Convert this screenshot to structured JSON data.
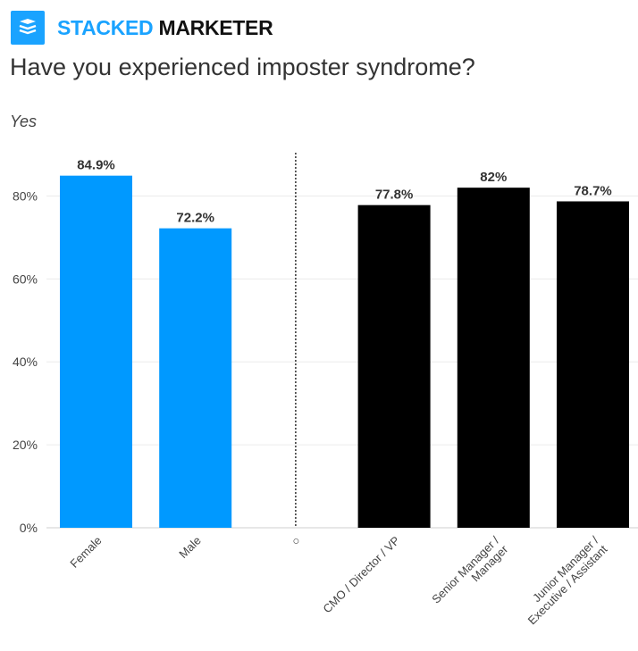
{
  "brand": {
    "name_first": "STACKED",
    "name_second": "MARKETER",
    "logo_icon": "stacked-layers-icon",
    "accent_color": "#1aa3ff"
  },
  "chart_data": {
    "type": "bar",
    "title": "Have you experienced imposter syndrome?",
    "subtitle": "Yes",
    "categories": [
      "Female",
      "Male",
      "○",
      "CMO / Director / VP",
      "Senior Manager /\nManager",
      "Junior Manager /\nExecutive / Assistant"
    ],
    "values": [
      84.9,
      72.2,
      null,
      77.8,
      82,
      78.7
    ],
    "data_labels": [
      "84.9%",
      "72.2%",
      "",
      "77.8%",
      "82%",
      "78.7%"
    ],
    "colors": [
      "#0099ff",
      "#0099ff",
      null,
      "#000000",
      "#000000",
      "#000000"
    ],
    "yticks": [
      "0%",
      "20%",
      "40%",
      "60%",
      "80%"
    ],
    "ytick_values": [
      0,
      20,
      40,
      60,
      80
    ],
    "ylim": [
      0,
      90
    ],
    "grid": true,
    "separator": "dotted vertical line between gender and role groups"
  }
}
